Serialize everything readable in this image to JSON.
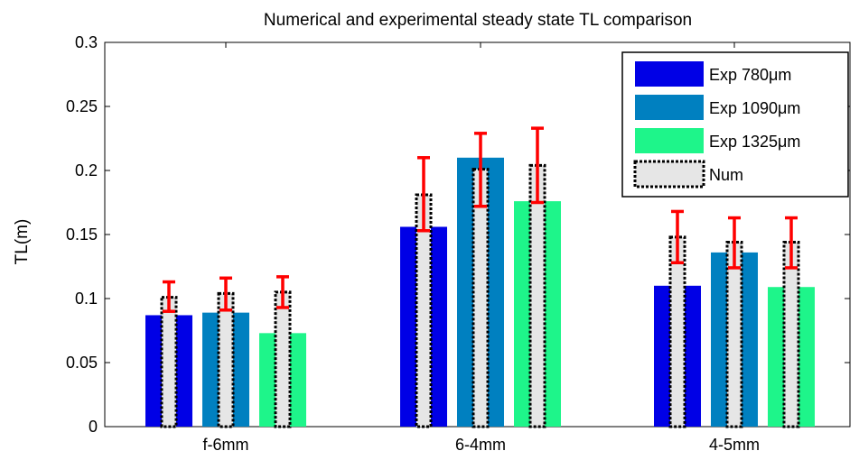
{
  "chart_data": {
    "type": "bar",
    "title": "Numerical and experimental steady state TL comparison",
    "xlabel": "",
    "ylabel": "TL(m)",
    "ylim": [
      0,
      0.3
    ],
    "yticks": [
      0,
      0.05,
      0.1,
      0.15,
      0.2,
      0.25,
      0.3
    ],
    "ytick_labels": [
      "0",
      "0.05",
      "0.1",
      "0.15",
      "0.2",
      "0.25",
      "0.3"
    ],
    "categories": [
      "f-6mm",
      "6-4mm",
      "4-5mm"
    ],
    "grid": false,
    "legend_position": "top-right",
    "series": [
      {
        "name": "Exp 780μm",
        "color": "#0000e6",
        "values": [
          0.087,
          0.156,
          0.11
        ]
      },
      {
        "name": "Exp 1090μm",
        "color": "#0080c0",
        "values": [
          0.089,
          0.21,
          0.136
        ]
      },
      {
        "name": "Exp 1325μm",
        "color": "#1ef58a",
        "values": [
          0.073,
          0.176,
          0.109
        ]
      }
    ],
    "numerical": {
      "name": "Num",
      "fill": "#e6e6e6",
      "values": [
        [
          0.101,
          0.104,
          0.105
        ],
        [
          0.181,
          0.201,
          0.204
        ],
        [
          0.148,
          0.144,
          0.144
        ]
      ],
      "error_low": [
        [
          0.09,
          0.091,
          0.093
        ],
        [
          0.153,
          0.172,
          0.175
        ],
        [
          0.128,
          0.124,
          0.124
        ]
      ],
      "error_high": [
        [
          0.113,
          0.116,
          0.117
        ],
        [
          0.21,
          0.229,
          0.233
        ],
        [
          0.168,
          0.163,
          0.163
        ]
      ],
      "error_color": "#ff0000"
    }
  }
}
